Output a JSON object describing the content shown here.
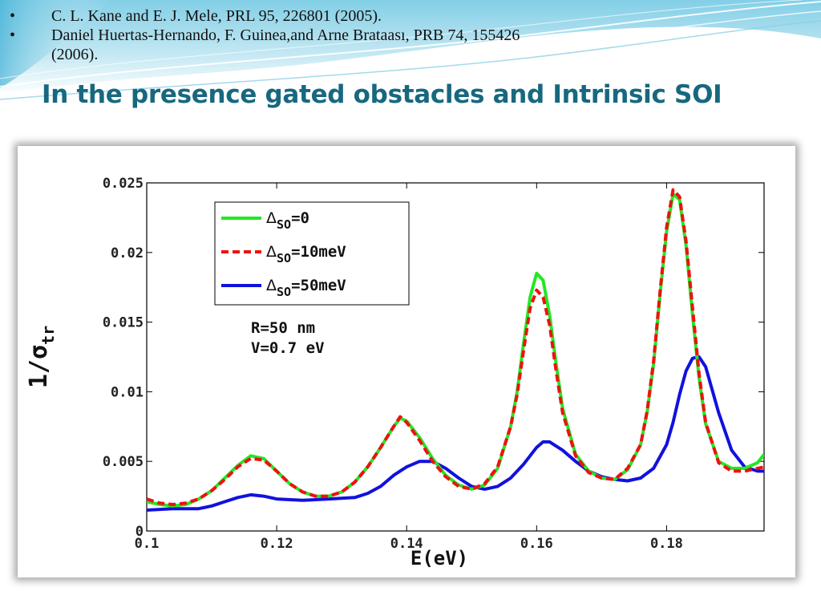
{
  "references": [
    {
      "bullet": "•",
      "text": "C. L. Kane and E. J. Mele, PRL 95, 226801 (2005)."
    },
    {
      "bullet": "•",
      "text": "Daniel Huertas-Hernando, F. Guinea,and Arne Brataası, PRB 74, 155426",
      "text2": "(2006)."
    }
  ],
  "title": "In the presence gated obstacles and Intrinsic SOI",
  "colors": {
    "title": "#17687f",
    "green": "#22e822",
    "red": "#ee1111",
    "blue": "#1111dd"
  },
  "chart_data": {
    "type": "line",
    "title": "",
    "xlabel": "E(eV)",
    "ylabel": "1/σ",
    "ylabel_sub": "tr",
    "xlim": [
      0.1,
      0.195
    ],
    "ylim": [
      0,
      0.025
    ],
    "xticks": [
      0.1,
      0.12,
      0.14,
      0.16,
      0.18
    ],
    "xtick_labels": [
      "0.1",
      "0.12",
      "0.14",
      "0.16",
      "0.18"
    ],
    "yticks": [
      0,
      0.005,
      0.01,
      0.015,
      0.02,
      0.025
    ],
    "ytick_labels": [
      "0",
      "0.005",
      "0.01",
      "0.015",
      "0.02",
      "0.025"
    ],
    "grid": false,
    "legend_position": "top-left",
    "annotations": [
      "R=50 nm",
      "V=0.7 eV"
    ],
    "series": [
      {
        "name": "Δ",
        "name_sub": "SO",
        "name_suffix": "=0",
        "color": "#22e822",
        "style": "solid",
        "x": [
          0.1,
          0.102,
          0.104,
          0.106,
          0.108,
          0.11,
          0.112,
          0.114,
          0.116,
          0.118,
          0.12,
          0.122,
          0.124,
          0.126,
          0.128,
          0.13,
          0.132,
          0.134,
          0.136,
          0.138,
          0.139,
          0.14,
          0.142,
          0.144,
          0.146,
          0.148,
          0.15,
          0.152,
          0.154,
          0.156,
          0.157,
          0.158,
          0.159,
          0.16,
          0.161,
          0.162,
          0.163,
          0.164,
          0.166,
          0.168,
          0.17,
          0.172,
          0.174,
          0.176,
          0.177,
          0.178,
          0.179,
          0.18,
          0.181,
          0.182,
          0.183,
          0.184,
          0.185,
          0.186,
          0.188,
          0.19,
          0.192,
          0.194,
          0.195
        ],
        "y": [
          0.0021,
          0.0019,
          0.0018,
          0.0019,
          0.0023,
          0.0029,
          0.0038,
          0.0047,
          0.0054,
          0.0052,
          0.0043,
          0.0034,
          0.0028,
          0.0025,
          0.0025,
          0.0028,
          0.0035,
          0.0046,
          0.006,
          0.0075,
          0.0081,
          0.0079,
          0.0067,
          0.0052,
          0.004,
          0.0033,
          0.003,
          0.0033,
          0.0045,
          0.0075,
          0.01,
          0.0135,
          0.0168,
          0.0185,
          0.018,
          0.0155,
          0.012,
          0.0088,
          0.0055,
          0.0043,
          0.0038,
          0.0037,
          0.0044,
          0.0062,
          0.0085,
          0.012,
          0.017,
          0.0215,
          0.0242,
          0.0238,
          0.0205,
          0.0155,
          0.011,
          0.0077,
          0.005,
          0.0045,
          0.0045,
          0.0049,
          0.0055
        ]
      },
      {
        "name": "Δ",
        "name_sub": "SO",
        "name_suffix": "=10meV",
        "color": "#ee1111",
        "style": "dashed",
        "x": [
          0.1,
          0.102,
          0.104,
          0.106,
          0.108,
          0.11,
          0.112,
          0.114,
          0.116,
          0.118,
          0.12,
          0.122,
          0.124,
          0.126,
          0.128,
          0.13,
          0.132,
          0.134,
          0.136,
          0.138,
          0.139,
          0.14,
          0.142,
          0.144,
          0.146,
          0.148,
          0.15,
          0.152,
          0.154,
          0.156,
          0.157,
          0.158,
          0.159,
          0.16,
          0.161,
          0.162,
          0.163,
          0.164,
          0.166,
          0.168,
          0.17,
          0.172,
          0.174,
          0.176,
          0.177,
          0.178,
          0.179,
          0.18,
          0.181,
          0.182,
          0.183,
          0.184,
          0.185,
          0.186,
          0.188,
          0.19,
          0.192,
          0.194,
          0.195
        ],
        "y": [
          0.0023,
          0.002,
          0.0019,
          0.002,
          0.0023,
          0.0029,
          0.0037,
          0.0046,
          0.0052,
          0.0051,
          0.0043,
          0.0034,
          0.0028,
          0.0025,
          0.0025,
          0.0028,
          0.0035,
          0.0046,
          0.006,
          0.0075,
          0.0082,
          0.0078,
          0.0065,
          0.005,
          0.0039,
          0.0032,
          0.003,
          0.0034,
          0.0046,
          0.0075,
          0.0098,
          0.013,
          0.016,
          0.0173,
          0.0168,
          0.0148,
          0.0115,
          0.0085,
          0.0054,
          0.0042,
          0.0038,
          0.0037,
          0.0045,
          0.0062,
          0.0086,
          0.0122,
          0.0172,
          0.0218,
          0.0245,
          0.024,
          0.0208,
          0.016,
          0.0113,
          0.0078,
          0.0049,
          0.0043,
          0.0043,
          0.0045,
          0.0046
        ]
      },
      {
        "name": "Δ",
        "name_sub": "SO",
        "name_suffix": "=50meV",
        "color": "#1111dd",
        "style": "solid",
        "x": [
          0.1,
          0.104,
          0.108,
          0.11,
          0.112,
          0.114,
          0.116,
          0.118,
          0.12,
          0.124,
          0.128,
          0.132,
          0.134,
          0.136,
          0.138,
          0.14,
          0.142,
          0.144,
          0.146,
          0.148,
          0.15,
          0.152,
          0.154,
          0.156,
          0.158,
          0.16,
          0.161,
          0.162,
          0.164,
          0.166,
          0.168,
          0.17,
          0.172,
          0.174,
          0.176,
          0.178,
          0.18,
          0.181,
          0.182,
          0.183,
          0.184,
          0.185,
          0.186,
          0.188,
          0.19,
          0.192,
          0.194,
          0.195
        ],
        "y": [
          0.0015,
          0.0016,
          0.0016,
          0.0018,
          0.0021,
          0.0024,
          0.0026,
          0.0025,
          0.0023,
          0.0022,
          0.0023,
          0.0024,
          0.0027,
          0.0032,
          0.004,
          0.0046,
          0.005,
          0.005,
          0.0045,
          0.0038,
          0.0032,
          0.003,
          0.0032,
          0.0038,
          0.0048,
          0.006,
          0.0064,
          0.0064,
          0.0058,
          0.005,
          0.0043,
          0.0039,
          0.0037,
          0.0036,
          0.0038,
          0.0045,
          0.0062,
          0.0078,
          0.0098,
          0.0115,
          0.0124,
          0.0125,
          0.0118,
          0.0085,
          0.0058,
          0.0046,
          0.0043,
          0.0043
        ]
      }
    ]
  }
}
